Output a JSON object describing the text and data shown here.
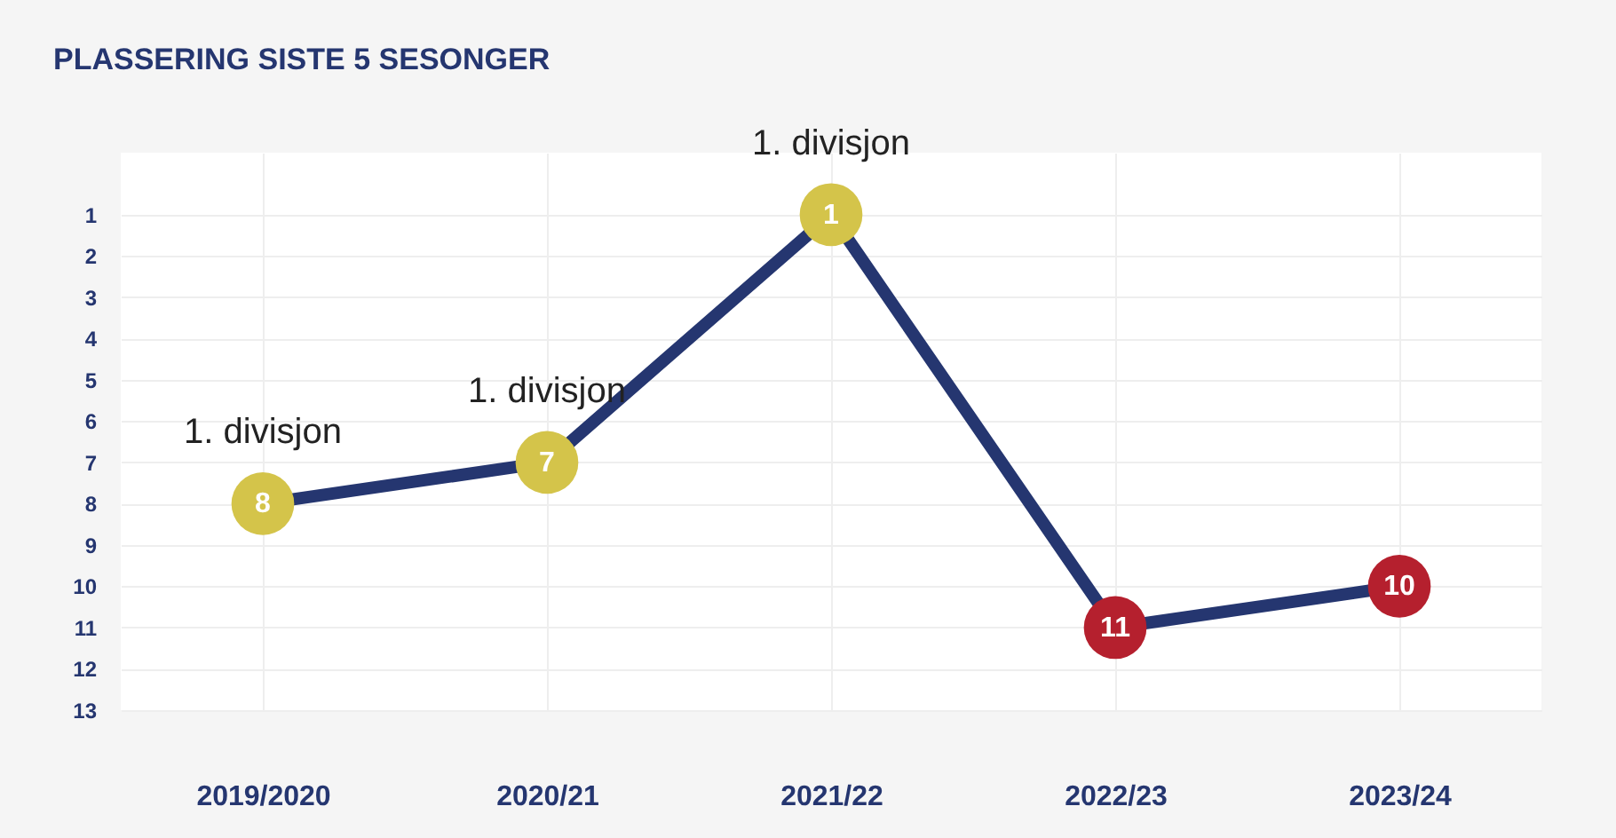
{
  "chart_data": {
    "type": "line",
    "title": "PLASSERING SISTE 5 SESONGER",
    "categories": [
      "2019/2020",
      "2020/21",
      "2021/22",
      "2022/23",
      "2023/24"
    ],
    "values": [
      8,
      7,
      1,
      11,
      10
    ],
    "color": "#253670",
    "colors": [
      "#d4c44a",
      "#d4c44a",
      "#d4c44a",
      "#b5202e",
      "#b5202e"
    ],
    "ylim": [
      13,
      -0.5
    ],
    "yticks": [
      1,
      2,
      3,
      4,
      5,
      6,
      7,
      8,
      9,
      10,
      11,
      12,
      13
    ],
    "grid": true,
    "marker": "circle",
    "line_style": "solid",
    "data_labels": true,
    "annotations": [
      {
        "text": "1. divisjon",
        "x": "2019/2020",
        "y": 8
      },
      {
        "text": "1. divisjon",
        "x": "2020/21",
        "y": 7
      },
      {
        "text": "1. divisjon",
        "x": "2021/22",
        "y": 1
      }
    ]
  }
}
